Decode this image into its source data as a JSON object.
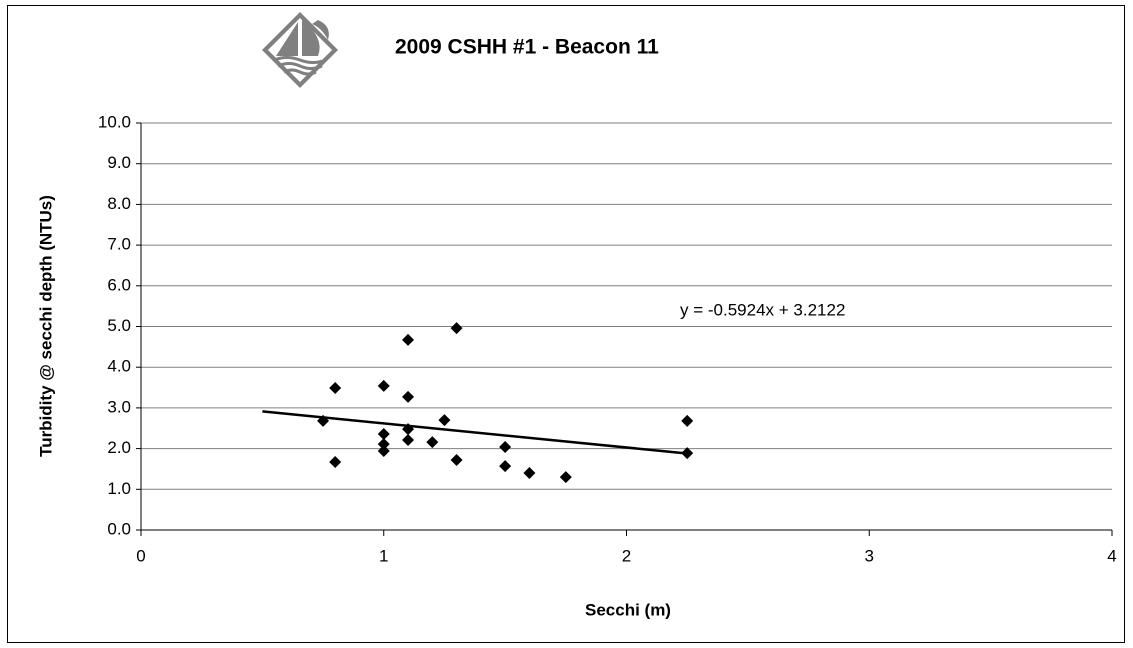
{
  "chart_data": {
    "type": "scatter",
    "title": "2009 CSHH #1 - Beacon 11",
    "xlabel": "Secchi (m)",
    "ylabel": "Turbidity @ secchi depth (NTUs)",
    "x": [
      0.75,
      0.8,
      0.8,
      1.0,
      1.0,
      1.0,
      1.0,
      1.1,
      1.1,
      1.1,
      1.1,
      1.2,
      1.25,
      1.3,
      1.3,
      1.5,
      1.5,
      1.6,
      1.75,
      2.25,
      2.25
    ],
    "values": [
      2.68,
      3.49,
      1.67,
      3.54,
      2.36,
      2.11,
      1.94,
      4.67,
      3.27,
      2.48,
      2.21,
      2.16,
      2.7,
      4.96,
      1.72,
      2.04,
      1.57,
      1.4,
      1.3,
      2.68,
      1.89
    ],
    "color": "#000000",
    "trendline": {
      "x": [
        0.5,
        2.25
      ],
      "values": [
        2.916,
        1.879
      ],
      "label": "y = -0.5924x + 3.2122",
      "color": "#000000"
    },
    "xlim": [
      0,
      4
    ],
    "xticks": [
      0,
      1,
      2,
      3,
      4
    ],
    "ylim": [
      0,
      10
    ],
    "yticks": [
      {
        "value": 0,
        "label": "0.0"
      },
      {
        "value": 1,
        "label": "1.0"
      },
      {
        "value": 2,
        "label": "2.0"
      },
      {
        "value": 3,
        "label": "3.0"
      },
      {
        "value": 4,
        "label": "4.0"
      },
      {
        "value": 5,
        "label": "5.0"
      },
      {
        "value": 6,
        "label": "6.0"
      },
      {
        "value": 7,
        "label": "7.0"
      },
      {
        "value": 8,
        "label": "8.0"
      },
      {
        "value": 9,
        "label": "9.0"
      },
      {
        "value": 10,
        "label": "10.0"
      }
    ],
    "grid": true
  }
}
